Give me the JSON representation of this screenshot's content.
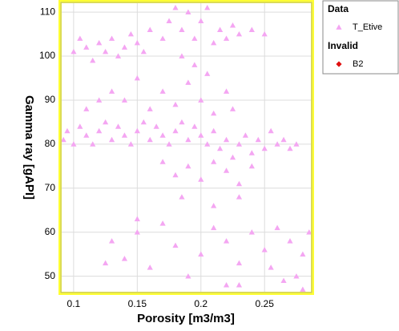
{
  "chart_data": {
    "type": "scatter",
    "x_label": "Porosity [m3/m3]",
    "y_label": "Gamma ray [gAPI]",
    "xlim": [
      0.09,
      0.287
    ],
    "ylim": [
      46.3,
      112.2
    ],
    "xticks": [
      0.1,
      0.15,
      0.2,
      0.25
    ],
    "yticks": [
      50,
      60,
      70,
      80,
      90,
      100,
      110
    ],
    "grid": true,
    "series": [
      {
        "group": "Data",
        "name": "T_Etive",
        "color": "#f4a6f2",
        "marker": "triangle",
        "x": [
          0.092,
          0.095,
          0.1,
          0.105,
          0.11,
          0.115,
          0.12,
          0.125,
          0.13,
          0.135,
          0.14,
          0.145,
          0.15,
          0.155,
          0.16,
          0.165,
          0.17,
          0.175,
          0.18,
          0.185,
          0.19,
          0.195,
          0.2,
          0.205,
          0.21,
          0.215,
          0.22,
          0.225,
          0.23,
          0.235,
          0.24,
          0.245,
          0.25,
          0.255,
          0.26,
          0.265,
          0.27,
          0.275,
          0.175,
          0.18,
          0.185,
          0.19,
          0.195,
          0.2,
          0.205,
          0.21,
          0.17,
          0.215,
          0.22,
          0.225,
          0.23,
          0.24,
          0.25,
          0.16,
          0.185,
          0.195,
          0.205,
          0.1,
          0.105,
          0.11,
          0.115,
          0.12,
          0.125,
          0.13,
          0.135,
          0.14,
          0.145,
          0.15,
          0.155,
          0.13,
          0.14,
          0.15,
          0.16,
          0.17,
          0.18,
          0.19,
          0.2,
          0.21,
          0.22,
          0.225,
          0.17,
          0.18,
          0.19,
          0.2,
          0.21,
          0.22,
          0.23,
          0.24,
          0.185,
          0.21,
          0.23,
          0.12,
          0.11,
          0.13,
          0.14,
          0.15,
          0.16,
          0.17,
          0.18,
          0.19,
          0.2,
          0.21,
          0.22,
          0.23,
          0.24,
          0.25,
          0.26,
          0.27,
          0.28,
          0.285,
          0.255,
          0.265,
          0.275,
          0.28,
          0.22,
          0.23,
          0.125,
          0.15
        ],
        "values": [
          81,
          83,
          80,
          84,
          82,
          80,
          83,
          85,
          81,
          84,
          82,
          80,
          83,
          85,
          81,
          84,
          82,
          80,
          83,
          85,
          81,
          84,
          82,
          80,
          83,
          79,
          81,
          77,
          80,
          82,
          78,
          81,
          79,
          83,
          80,
          81,
          79,
          80,
          108,
          111,
          106,
          110,
          104,
          108,
          111,
          103,
          104,
          106,
          104,
          107,
          105,
          106,
          105,
          106,
          100,
          98,
          96,
          101,
          104,
          102,
          99,
          103,
          101,
          104,
          100,
          102,
          105,
          103,
          101,
          92,
          90,
          95,
          88,
          92,
          89,
          94,
          90,
          87,
          92,
          88,
          76,
          73,
          75,
          72,
          76,
          74,
          71,
          75,
          68,
          66,
          68,
          90,
          88,
          58,
          54,
          60,
          52,
          62,
          57,
          50,
          55,
          61,
          58,
          53,
          60,
          56,
          61,
          58,
          55,
          60,
          52,
          49,
          50,
          47,
          48,
          48,
          53,
          63
        ]
      },
      {
        "group": "Invalid",
        "name": "B2",
        "color": "#e01010",
        "marker": "diamond",
        "x": [],
        "values": []
      }
    ]
  }
}
